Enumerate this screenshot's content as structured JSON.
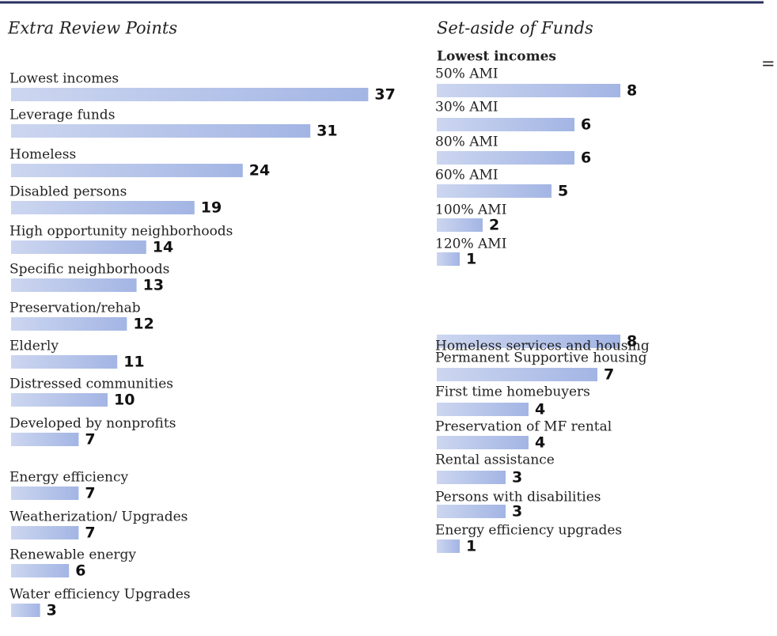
{
  "chart_data": [
    {
      "type": "bar",
      "title": "Extra Review Points",
      "color": "#a3b5e4",
      "categories": [
        "Lowest incomes",
        "Leverage funds",
        "Homeless",
        "Disabled persons",
        "High opportunity neighborhoods",
        "Specific neighborhoods",
        "Preservation/rehab",
        "Elderly",
        "Distressed communities",
        "Developed by nonprofits",
        "Energy efficiency",
        "Weatherization/ Upgrades",
        "Renewable energy",
        "Water efficiency Upgrades"
      ],
      "values": [
        37,
        31,
        24,
        19,
        14,
        13,
        12,
        11,
        10,
        7,
        7,
        7,
        6,
        3
      ]
    },
    {
      "type": "bar",
      "title": "Set-aside of Funds",
      "group_label": "Lowest incomes",
      "annotation": "=",
      "color": "#a3b5e4",
      "categories": [
        "50% AMI",
        "30% AMI",
        "80% AMI",
        "60% AMI",
        "100% AMI",
        "120% AMI",
        "Homeless services and housing",
        "Permanent Supportive housing",
        "First time homebuyers",
        "Preservation of MF rental",
        "Rental assistance",
        "Persons with disabilities",
        "Energy efficiency upgrades"
      ],
      "values": [
        8,
        6,
        6,
        5,
        2,
        1,
        8,
        7,
        4,
        4,
        3,
        3,
        1
      ]
    }
  ]
}
